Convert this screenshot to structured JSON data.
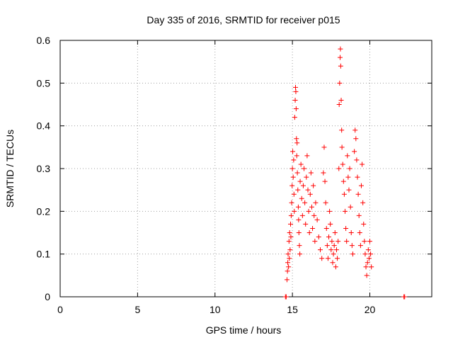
{
  "chart_data": {
    "type": "scatter",
    "title": "Day 335 of 2016, SRMTID for receiver p015",
    "xlabel": "GPS time / hours",
    "ylabel": "SRMTID / TECUs",
    "xlim": [
      0,
      24
    ],
    "ylim": [
      0,
      0.6
    ],
    "x_ticks": [
      "0",
      "5",
      "10",
      "15",
      "20"
    ],
    "y_ticks": [
      "0",
      "0.1",
      "0.2",
      "0.3",
      "0.4",
      "0.5",
      "0.6"
    ],
    "grid": true,
    "marker": "+",
    "color": "#ff0000",
    "points": [
      [
        14.55,
        0.0
      ],
      [
        14.6,
        0.0
      ],
      [
        22.2,
        0.0
      ],
      [
        22.25,
        0.0
      ],
      [
        14.65,
        0.04
      ],
      [
        14.68,
        0.06
      ],
      [
        14.7,
        0.08
      ],
      [
        14.72,
        0.1
      ],
      [
        14.75,
        0.07
      ],
      [
        14.78,
        0.13
      ],
      [
        14.8,
        0.09
      ],
      [
        14.82,
        0.15
      ],
      [
        14.85,
        0.11
      ],
      [
        14.88,
        0.17
      ],
      [
        14.9,
        0.14
      ],
      [
        14.92,
        0.19
      ],
      [
        14.95,
        0.22
      ],
      [
        14.98,
        0.26
      ],
      [
        15.0,
        0.3
      ],
      [
        15.02,
        0.34
      ],
      [
        15.05,
        0.28
      ],
      [
        15.08,
        0.32
      ],
      [
        15.1,
        0.24
      ],
      [
        15.12,
        0.2
      ],
      [
        15.15,
        0.42
      ],
      [
        15.18,
        0.46
      ],
      [
        15.2,
        0.49
      ],
      [
        15.22,
        0.48
      ],
      [
        15.24,
        0.44
      ],
      [
        15.26,
        0.37
      ],
      [
        15.28,
        0.33
      ],
      [
        15.3,
        0.36
      ],
      [
        15.32,
        0.29
      ],
      [
        15.35,
        0.25
      ],
      [
        15.38,
        0.21
      ],
      [
        15.4,
        0.18
      ],
      [
        15.42,
        0.15
      ],
      [
        15.45,
        0.12
      ],
      [
        15.48,
        0.1
      ],
      [
        15.5,
        0.27
      ],
      [
        15.55,
        0.31
      ],
      [
        15.6,
        0.23
      ],
      [
        15.65,
        0.19
      ],
      [
        15.7,
        0.26
      ],
      [
        15.75,
        0.3
      ],
      [
        15.8,
        0.22
      ],
      [
        15.85,
        0.17
      ],
      [
        15.9,
        0.28
      ],
      [
        15.95,
        0.33
      ],
      [
        16.0,
        0.25
      ],
      [
        16.05,
        0.2
      ],
      [
        16.1,
        0.15
      ],
      [
        16.15,
        0.24
      ],
      [
        16.2,
        0.29
      ],
      [
        16.25,
        0.21
      ],
      [
        16.3,
        0.16
      ],
      [
        16.35,
        0.26
      ],
      [
        16.4,
        0.19
      ],
      [
        16.45,
        0.13
      ],
      [
        16.5,
        0.22
      ],
      [
        16.6,
        0.18
      ],
      [
        16.7,
        0.14
      ],
      [
        16.8,
        0.11
      ],
      [
        16.9,
        0.09
      ],
      [
        17.0,
        0.29
      ],
      [
        17.05,
        0.35
      ],
      [
        17.1,
        0.27
      ],
      [
        17.15,
        0.22
      ],
      [
        17.2,
        0.16
      ],
      [
        17.25,
        0.12
      ],
      [
        17.3,
        0.09
      ],
      [
        17.35,
        0.14
      ],
      [
        17.4,
        0.2
      ],
      [
        17.45,
        0.17
      ],
      [
        17.5,
        0.11
      ],
      [
        17.55,
        0.13
      ],
      [
        17.6,
        0.08
      ],
      [
        17.65,
        0.1
      ],
      [
        17.7,
        0.12
      ],
      [
        17.75,
        0.15
      ],
      [
        17.8,
        0.07
      ],
      [
        17.85,
        0.11
      ],
      [
        17.9,
        0.09
      ],
      [
        17.95,
        0.13
      ],
      [
        18.0,
        0.3
      ],
      [
        18.02,
        0.45
      ],
      [
        18.05,
        0.5
      ],
      [
        18.08,
        0.56
      ],
      [
        18.1,
        0.58
      ],
      [
        18.12,
        0.54
      ],
      [
        18.15,
        0.46
      ],
      [
        18.18,
        0.39
      ],
      [
        18.2,
        0.35
      ],
      [
        18.25,
        0.31
      ],
      [
        18.3,
        0.27
      ],
      [
        18.35,
        0.24
      ],
      [
        18.4,
        0.2
      ],
      [
        18.45,
        0.16
      ],
      [
        18.5,
        0.13
      ],
      [
        18.55,
        0.33
      ],
      [
        18.6,
        0.28
      ],
      [
        18.65,
        0.25
      ],
      [
        18.7,
        0.3
      ],
      [
        18.75,
        0.21
      ],
      [
        18.8,
        0.15
      ],
      [
        18.85,
        0.12
      ],
      [
        18.9,
        0.1
      ],
      [
        19.0,
        0.34
      ],
      [
        19.05,
        0.39
      ],
      [
        19.1,
        0.37
      ],
      [
        19.15,
        0.32
      ],
      [
        19.2,
        0.28
      ],
      [
        19.25,
        0.24
      ],
      [
        19.3,
        0.19
      ],
      [
        19.35,
        0.15
      ],
      [
        19.4,
        0.12
      ],
      [
        19.45,
        0.26
      ],
      [
        19.5,
        0.31
      ],
      [
        19.55,
        0.22
      ],
      [
        19.6,
        0.17
      ],
      [
        19.65,
        0.13
      ],
      [
        19.7,
        0.1
      ],
      [
        19.75,
        0.07
      ],
      [
        19.8,
        0.05
      ],
      [
        19.85,
        0.08
      ],
      [
        19.9,
        0.11
      ],
      [
        19.95,
        0.09
      ],
      [
        20.0,
        0.13
      ],
      [
        20.05,
        0.1
      ],
      [
        20.1,
        0.07
      ]
    ]
  }
}
